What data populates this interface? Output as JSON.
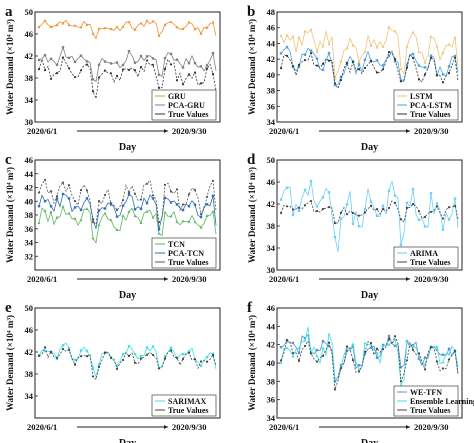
{
  "chart_data": [
    {
      "panel": "a",
      "type": "line",
      "xlabel": "Day",
      "ylabel": "Water Demand (×10⁴ m³)",
      "ylim": [
        30,
        50
      ],
      "yticks": [
        30,
        34,
        38,
        42,
        46,
        50
      ],
      "x_start": "2020/6/1",
      "x_end": "2020/9/30",
      "legend_position": "bottom-right",
      "series": [
        {
          "name": "GRU",
          "color": "#f28e2b",
          "marker": "triangle",
          "level": 47.5,
          "amp": 1.2
        },
        {
          "name": "PCA-GRU",
          "color": "#7f7f7f",
          "marker": "square",
          "level": 41.2,
          "amp": 2.0
        },
        {
          "name": "True Values",
          "color": "#333333",
          "marker": "circle",
          "level": 39.0,
          "amp": 2.5
        }
      ]
    },
    {
      "panel": "b",
      "type": "line",
      "xlabel": "Day",
      "ylabel": "Water Demand (×10⁴ m³)",
      "ylim": [
        34,
        48
      ],
      "yticks": [
        34,
        36,
        38,
        40,
        42,
        44,
        46,
        48
      ],
      "x_start": "2020/6/1",
      "x_end": "2020/9/30",
      "legend_position": "bottom-right",
      "series": [
        {
          "name": "LSTM",
          "color": "#f0c27a",
          "marker": "triangle",
          "level": 44.0,
          "amp": 2.5
        },
        {
          "name": "PCA-LSTM",
          "color": "#4aa3df",
          "marker": "square",
          "level": 41.5,
          "amp": 2.0
        },
        {
          "name": "True Values",
          "color": "#333333",
          "marker": "circle",
          "level": 41.0,
          "amp": 2.0
        }
      ]
    },
    {
      "panel": "c",
      "type": "line",
      "xlabel": "Day",
      "ylabel": "Water Demand (×10⁴ m³)",
      "ylim": [
        30,
        46
      ],
      "yticks": [
        32,
        34,
        36,
        38,
        40,
        42,
        44,
        46
      ],
      "x_start": "2020/6/1",
      "x_end": "2020/9/30",
      "legend_position": "bottom-right",
      "series": [
        {
          "name": "TCN",
          "color": "#5cb85c",
          "marker": "triangle",
          "level": 37.5,
          "amp": 2.0
        },
        {
          "name": "PCA-TCN",
          "color": "#2f6fb5",
          "marker": "square",
          "level": 39.5,
          "amp": 2.0
        },
        {
          "name": "True Values",
          "color": "#555555",
          "marker": "circle",
          "level": 41.0,
          "amp": 2.5
        }
      ]
    },
    {
      "panel": "d",
      "type": "line",
      "xlabel": "Day",
      "ylabel": "Water Demand (×10⁴ m³)",
      "ylim": [
        30,
        50
      ],
      "yticks": [
        30,
        34,
        38,
        42,
        46,
        50
      ],
      "x_start": "2020/6/1",
      "x_end": "2020/9/30",
      "legend_position": "bottom-right",
      "series": [
        {
          "name": "ARIMA",
          "color": "#6ecff6",
          "marker": "square",
          "level": 41.5,
          "amp": 5.0
        },
        {
          "name": "True Values",
          "color": "#444444",
          "marker": "circle",
          "level": 41.0,
          "amp": 1.5
        }
      ]
    },
    {
      "panel": "e",
      "type": "line",
      "xlabel": "Day",
      "ylabel": "Water Demand (×10⁴ m³)",
      "ylim": [
        30,
        50
      ],
      "yticks": [
        34,
        38,
        42,
        46,
        50
      ],
      "x_start": "2020/6/1",
      "x_end": "2020/9/30",
      "legend_position": "bottom-right",
      "series": [
        {
          "name": "SARIMAX",
          "color": "#3fe0e8",
          "marker": "square",
          "level": 41.5,
          "amp": 2.0
        },
        {
          "name": "True Values",
          "color": "#444444",
          "marker": "circle",
          "level": 41.0,
          "amp": 2.0
        }
      ]
    },
    {
      "panel": "f",
      "type": "line",
      "xlabel": "Day",
      "ylabel": "Water Demand (×10⁴ m³)",
      "ylim": [
        34,
        46
      ],
      "yticks": [
        34,
        36,
        38,
        40,
        42,
        44,
        46
      ],
      "x_start": "2020/6/1",
      "x_end": "2020/9/30",
      "legend_position": "bottom-right",
      "series": [
        {
          "name": "WE-TFN",
          "color": "#5b8fd6",
          "marker": "square",
          "level": 41.5,
          "amp": 2.0
        },
        {
          "name": "Ensemble Learning",
          "color": "#3fe0e8",
          "marker": "triangle",
          "level": 41.3,
          "amp": 2.2
        },
        {
          "name": "True Values",
          "color": "#444444",
          "marker": "circle",
          "level": 41.0,
          "amp": 2.0
        }
      ]
    }
  ]
}
